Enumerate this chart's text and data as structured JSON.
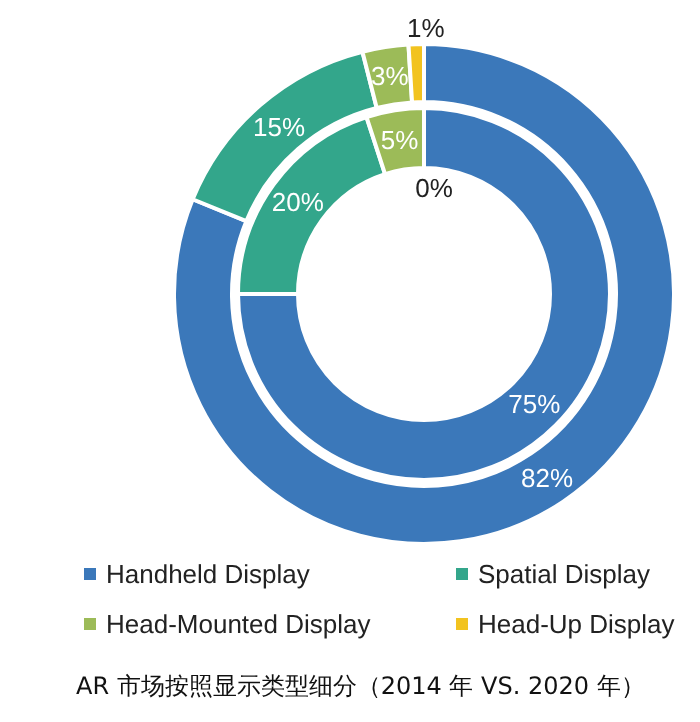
{
  "chart_data": {
    "type": "donut",
    "categories": [
      "Handheld Display",
      "Spatial Display",
      "Head-Mounted Display",
      "Head-Up Display"
    ],
    "series": [
      {
        "colors": [
          "#3b78ba",
          "#33a68b",
          "#9cbb58",
          "#f2c31f"
        ],
        "values": [
          75,
          20,
          5,
          0
        ],
        "value_labels": [
          "75%",
          "20%",
          "5%",
          "0%"
        ]
      },
      {
        "colors": [
          "#3b78ba",
          "#33a68b",
          "#9cbb58",
          "#f2c31f"
        ],
        "values": [
          82,
          15,
          3,
          1
        ],
        "value_labels": [
          "82%",
          "15%",
          "3%",
          "1%"
        ]
      }
    ],
    "legend": "bottom",
    "annotations": [
      "AR 市场按照显示类型细分（2014 年  VS. 2020 年）"
    ]
  }
}
